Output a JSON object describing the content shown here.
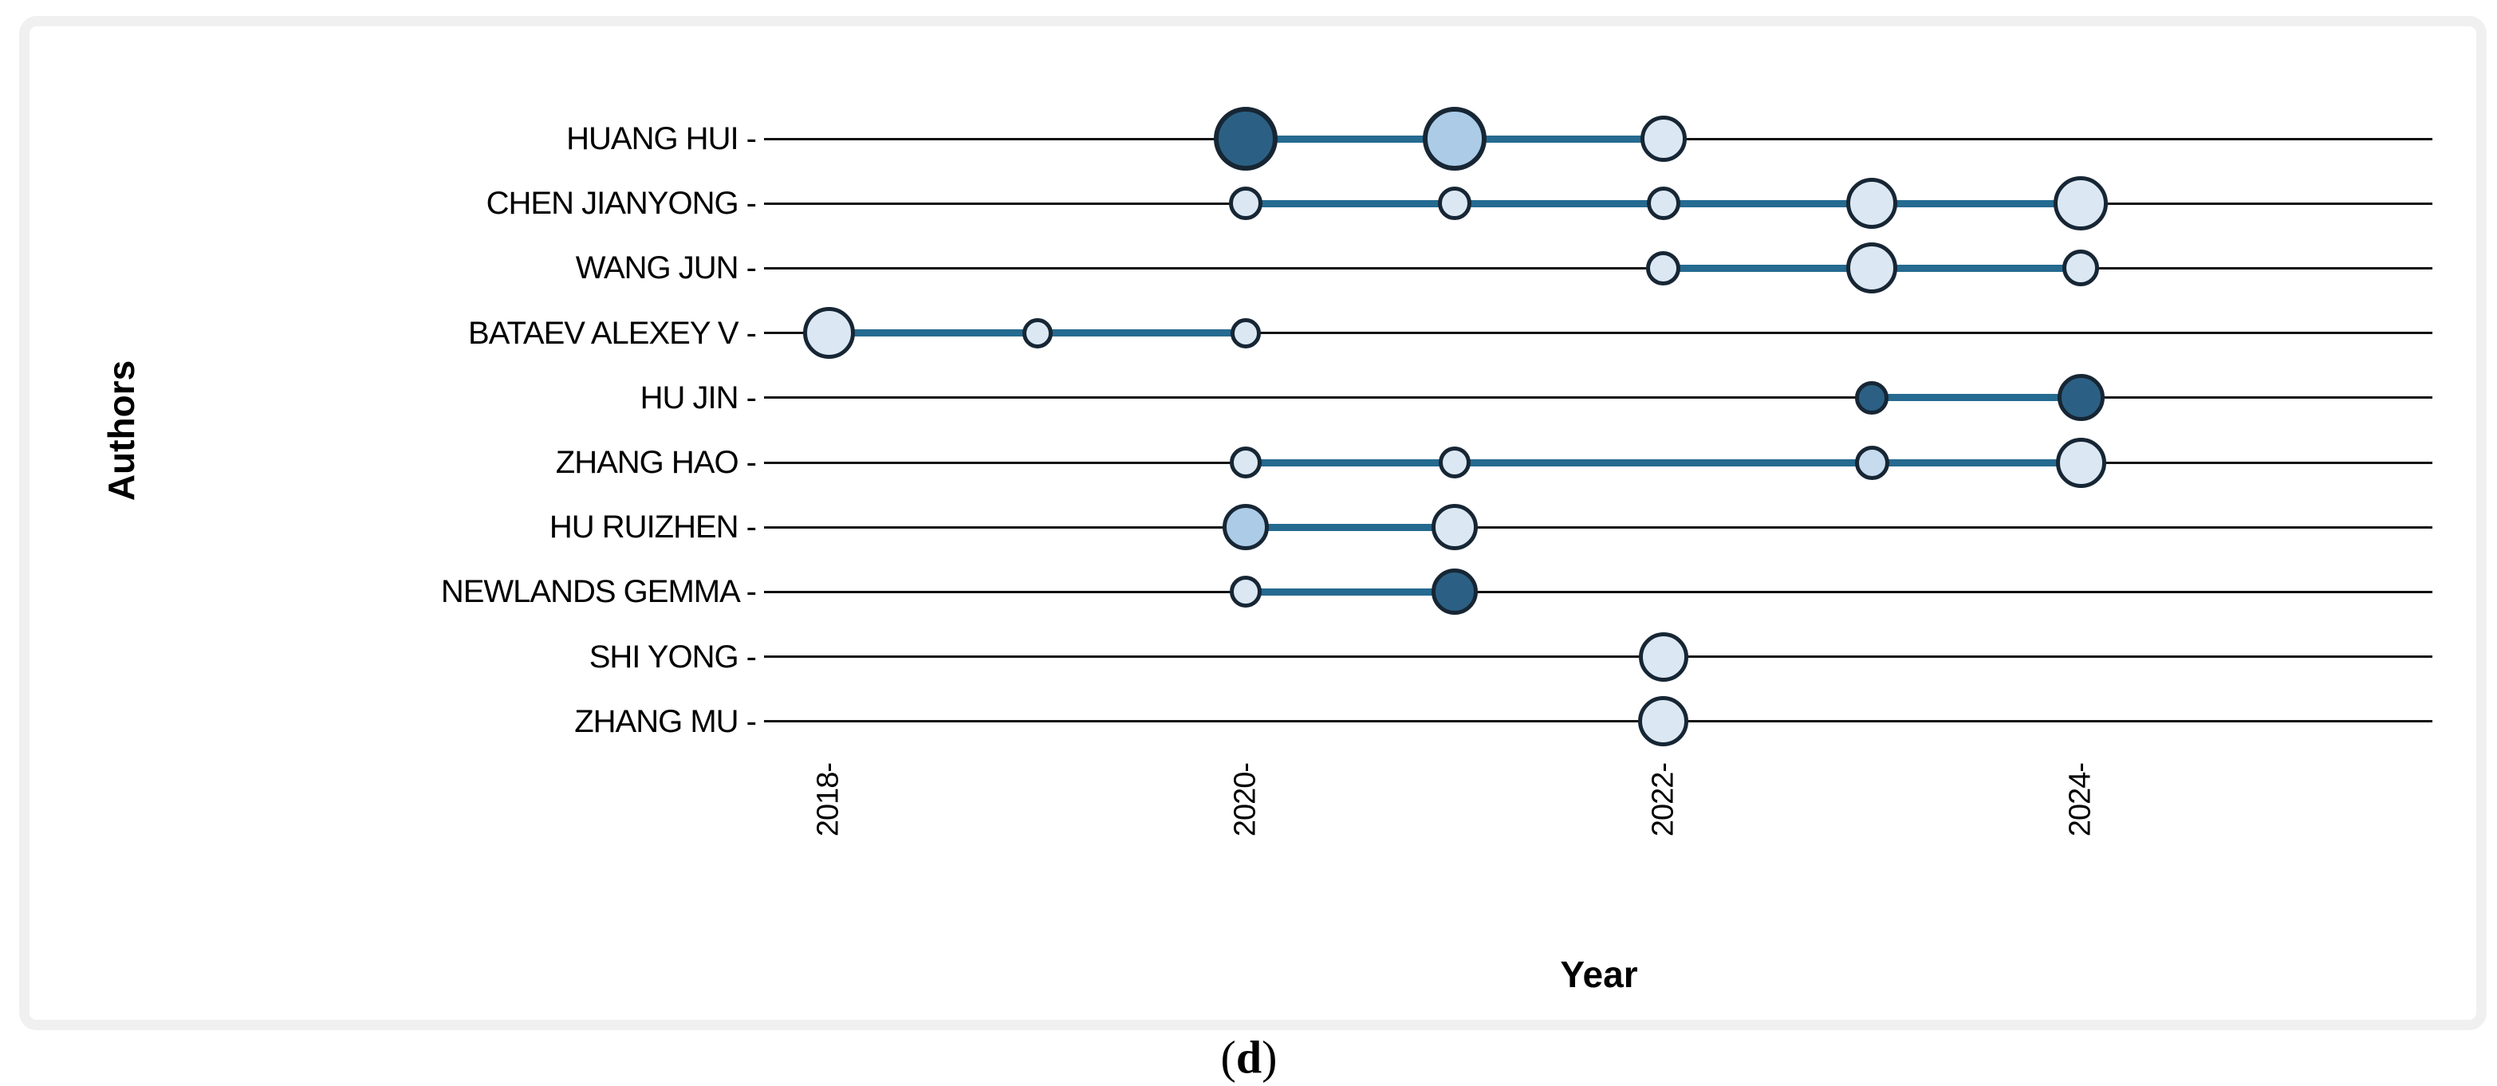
{
  "figure": {
    "caption_open": "(",
    "caption_letter": "d",
    "caption_close": ")"
  },
  "chart_data": {
    "type": "scatter",
    "subtype": "authors-production-over-time-bubble-timeline",
    "title": "",
    "xlabel": "Year",
    "ylabel": "Authors",
    "x_range": [
      2017.7,
      2025.7
    ],
    "grid": "horizontal-row-lines",
    "legend": "none",
    "tick_suffix": " -",
    "x_ticks": [
      {
        "label": "2018-",
        "year": 2018
      },
      {
        "label": "2020-",
        "year": 2020
      },
      {
        "label": "2022-",
        "year": 2022
      },
      {
        "label": "2024-",
        "year": 2024
      }
    ],
    "authors": [
      {
        "name": "HUANG HUI",
        "line": [
          2020,
          2022
        ],
        "points": [
          {
            "year": 2020,
            "size": 80,
            "shade": "dark"
          },
          {
            "year": 2021,
            "size": 80,
            "shade": "medium"
          },
          {
            "year": 2022,
            "size": 58,
            "shade": "light"
          }
        ]
      },
      {
        "name": "CHEN JIANYONG",
        "line": [
          2020,
          2024
        ],
        "points": [
          {
            "year": 2020,
            "size": 42,
            "shade": "light"
          },
          {
            "year": 2021,
            "size": 42,
            "shade": "light"
          },
          {
            "year": 2022,
            "size": 42,
            "shade": "light"
          },
          {
            "year": 2023,
            "size": 64,
            "shade": "light"
          },
          {
            "year": 2024,
            "size": 68,
            "shade": "light"
          }
        ]
      },
      {
        "name": "WANG JUN",
        "line": [
          2022,
          2024
        ],
        "points": [
          {
            "year": 2022,
            "size": 43,
            "shade": "light"
          },
          {
            "year": 2023,
            "size": 64,
            "shade": "light"
          },
          {
            "year": 2024,
            "size": 46,
            "shade": "light"
          }
        ]
      },
      {
        "name": "BATAEV ALEXEY V",
        "line": [
          2018,
          2020
        ],
        "points": [
          {
            "year": 2018,
            "size": 65,
            "shade": "light"
          },
          {
            "year": 2019,
            "size": 38,
            "shade": "light"
          },
          {
            "year": 2020,
            "size": 38,
            "shade": "light"
          }
        ]
      },
      {
        "name": "HU JIN",
        "line": [
          2023,
          2024
        ],
        "points": [
          {
            "year": 2023,
            "size": 42,
            "shade": "dark"
          },
          {
            "year": 2024,
            "size": 59,
            "shade": "dark"
          }
        ]
      },
      {
        "name": "ZHANG HAO",
        "line": [
          2020,
          2024
        ],
        "points": [
          {
            "year": 2020,
            "size": 40,
            "shade": "light"
          },
          {
            "year": 2021,
            "size": 40,
            "shade": "light"
          },
          {
            "year": 2023,
            "size": 43,
            "shade": "medium_light"
          },
          {
            "year": 2024,
            "size": 63,
            "shade": "light"
          }
        ]
      },
      {
        "name": "HU RUIZHEN",
        "line": [
          2020,
          2021
        ],
        "points": [
          {
            "year": 2020,
            "size": 58,
            "shade": "medium"
          },
          {
            "year": 2021,
            "size": 58,
            "shade": "light"
          }
        ]
      },
      {
        "name": "NEWLANDS GEMMA",
        "line": [
          2020,
          2021
        ],
        "points": [
          {
            "year": 2020,
            "size": 40,
            "shade": "light"
          },
          {
            "year": 2021,
            "size": 58,
            "shade": "dark"
          }
        ]
      },
      {
        "name": "SHI YONG",
        "line": null,
        "points": [
          {
            "year": 2022,
            "size": 62,
            "shade": "light"
          }
        ]
      },
      {
        "name": "ZHANG MU",
        "line": null,
        "points": [
          {
            "year": 2022,
            "size": 63,
            "shade": "light"
          }
        ]
      }
    ],
    "colors": {
      "shade_dark": "#2b6084",
      "shade_medium": "#abcbe7",
      "shade_medium_light": "#c6dbee",
      "shade_light": "#dbe8f4",
      "bubble_stroke": "#172634",
      "timeline_segment": "#256a90",
      "row_line": "#111111",
      "panel_border": "#f0f0f0"
    }
  }
}
